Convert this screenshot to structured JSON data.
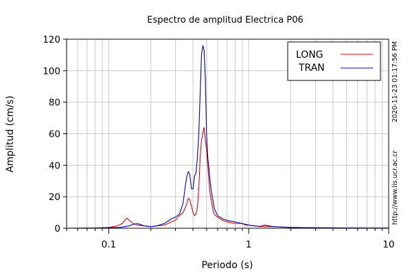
{
  "chart_data": {
    "type": "line",
    "title": "Espectro de amplitud Electrica P06",
    "xlabel": "Periodo (s)",
    "ylabel": "Amplitud (cm/s)",
    "x_scale": "log",
    "xlim": [
      0.05,
      10
    ],
    "ylim": [
      0,
      120
    ],
    "x_ticks": [
      {
        "value": 0.1,
        "label": "0.1"
      },
      {
        "value": 1,
        "label": "1"
      },
      {
        "value": 10,
        "label": "10"
      }
    ],
    "y_ticks": [
      {
        "value": 0,
        "label": "0"
      },
      {
        "value": 20,
        "label": "20"
      },
      {
        "value": 40,
        "label": "40"
      },
      {
        "value": 60,
        "label": "60"
      },
      {
        "value": 80,
        "label": "80"
      },
      {
        "value": 100,
        "label": "100"
      },
      {
        "value": 120,
        "label": "120"
      }
    ],
    "grid": true,
    "legend_position": "top-right",
    "timestamp": "2020-11-23 01:17:56 PM",
    "url": "http://www.lis.ucr.ac.cr",
    "series": [
      {
        "name": "LONG",
        "color": "#dd0000",
        "x": [
          0.05,
          0.08,
          0.1,
          0.115,
          0.125,
          0.13,
          0.135,
          0.14,
          0.15,
          0.16,
          0.18,
          0.2,
          0.22,
          0.25,
          0.28,
          0.3,
          0.32,
          0.34,
          0.36,
          0.37,
          0.38,
          0.39,
          0.4,
          0.41,
          0.42,
          0.43,
          0.44,
          0.45,
          0.46,
          0.47,
          0.48,
          0.49,
          0.5,
          0.51,
          0.52,
          0.53,
          0.54,
          0.56,
          0.58,
          0.6,
          0.65,
          0.7,
          0.8,
          0.9,
          0.95,
          1.0,
          1.1,
          1.2,
          1.5,
          2.0,
          3.0,
          5.0,
          10.0
        ],
        "y": [
          0,
          0.2,
          0.5,
          1.5,
          3,
          5,
          6.5,
          5,
          3,
          2,
          1.5,
          1,
          1.5,
          2,
          4,
          5,
          8,
          10,
          15,
          19,
          18,
          14,
          10,
          8,
          9,
          13,
          25,
          45,
          56,
          60,
          64,
          56,
          50,
          40,
          30,
          22,
          18,
          10,
          8,
          7,
          5,
          4,
          3,
          3,
          2,
          2,
          1.5,
          1,
          1,
          0.5,
          0.3,
          0.2,
          0.1
        ]
      },
      {
        "name": "TRAN",
        "color": "#0000aa",
        "x": [
          0.05,
          0.08,
          0.1,
          0.12,
          0.14,
          0.15,
          0.16,
          0.18,
          0.2,
          0.22,
          0.25,
          0.28,
          0.3,
          0.32,
          0.34,
          0.35,
          0.36,
          0.37,
          0.375,
          0.38,
          0.39,
          0.4,
          0.41,
          0.42,
          0.43,
          0.44,
          0.45,
          0.46,
          0.47,
          0.48,
          0.49,
          0.5,
          0.51,
          0.52,
          0.53,
          0.54,
          0.55,
          0.57,
          0.6,
          0.65,
          0.7,
          0.8,
          0.9,
          1.0,
          1.1,
          1.2,
          1.3,
          1.5,
          2.0,
          3.0,
          5.0,
          10.0
        ],
        "y": [
          0,
          0.1,
          0.3,
          0.5,
          1.5,
          2.5,
          3,
          1.5,
          1,
          1.5,
          3,
          6,
          7,
          9,
          16,
          25,
          32,
          36,
          35,
          34,
          25,
          25,
          33,
          35,
          45,
          60,
          85,
          110,
          116,
          113,
          95,
          60,
          45,
          38,
          30,
          24,
          20,
          12,
          8,
          6,
          5,
          4,
          3,
          2,
          1.5,
          1.2,
          2,
          1,
          0.5,
          0.3,
          0.2,
          0.1
        ]
      }
    ]
  }
}
